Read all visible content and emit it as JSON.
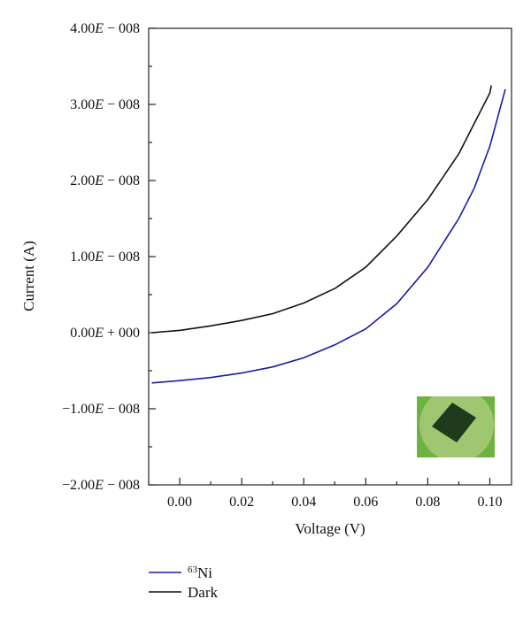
{
  "chart_data": {
    "type": "line",
    "title": "",
    "xlabel": "Voltage (V)",
    "ylabel": "Current (A)",
    "xlim": [
      -0.01,
      0.107
    ],
    "ylim": [
      -2e-08,
      4e-08
    ],
    "x_ticks": [
      0.0,
      0.02,
      0.04,
      0.06,
      0.08,
      0.1
    ],
    "x_tick_labels": [
      "0.00",
      "0.02",
      "0.04",
      "0.06",
      "0.08",
      "0.10"
    ],
    "y_ticks": [
      4e-08,
      3e-08,
      2e-08,
      1e-08,
      0,
      -1e-08,
      -2e-08
    ],
    "y_tick_labels": [
      {
        "mantissa": "4.00",
        "e": "E",
        "rest": " − 008"
      },
      {
        "mantissa": "3.00",
        "e": "E",
        "rest": " − 008"
      },
      {
        "mantissa": "2.00",
        "e": "E",
        "rest": " − 008"
      },
      {
        "mantissa": "1.00",
        "e": "E",
        "rest": " − 008"
      },
      {
        "mantissa": "0.00",
        "e": "E",
        "rest": " + 000"
      },
      {
        "mantissa": "−1.00",
        "e": "E",
        "rest": " − 008"
      },
      {
        "mantissa": "−2.00",
        "e": "E",
        "rest": " − 008"
      }
    ],
    "grid": false,
    "legend_position": "bottom-left-outside",
    "series": [
      {
        "name": "Ni",
        "name_superscript": "63",
        "color": "#1a1aa6",
        "x": [
          -0.009,
          0.0,
          0.01,
          0.02,
          0.03,
          0.04,
          0.05,
          0.06,
          0.07,
          0.08,
          0.09,
          0.095,
          0.1,
          0.105
        ],
        "y": [
          -6.6e-09,
          -6.3e-09,
          -5.9e-09,
          -5.3e-09,
          -4.5e-09,
          -3.3e-09,
          -1.6e-09,
          5e-10,
          3.8e-09,
          8.6e-09,
          1.5e-08,
          1.9e-08,
          2.45e-08,
          3.2e-08
        ]
      },
      {
        "name": "Dark",
        "color": "#111111",
        "x": [
          -0.009,
          0.0,
          0.01,
          0.02,
          0.03,
          0.04,
          0.05,
          0.06,
          0.07,
          0.08,
          0.09,
          0.095,
          0.1,
          0.1005
        ],
        "y": [
          0.0,
          3e-10,
          9e-10,
          1.6e-09,
          2.5e-09,
          3.9e-09,
          5.8e-09,
          8.6e-09,
          1.27e-08,
          1.75e-08,
          2.35e-08,
          2.75e-08,
          3.15e-08,
          3.25e-08
        ]
      }
    ],
    "inset_photo": {
      "bg": "#6db33f",
      "disk": "#a8c97a",
      "chip": "#1f3a1c"
    }
  }
}
